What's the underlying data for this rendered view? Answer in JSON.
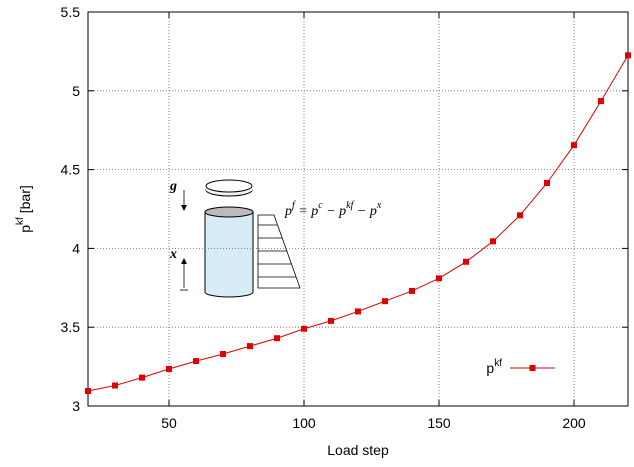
{
  "chart_data": {
    "type": "line",
    "xlabel": "Load step",
    "ylabel": [
      "p",
      "kf",
      " [bar]"
    ],
    "x": [
      20,
      30,
      40,
      50,
      60,
      70,
      80,
      90,
      100,
      110,
      120,
      130,
      140,
      150,
      160,
      170,
      180,
      190,
      200,
      210,
      220
    ],
    "series": [
      {
        "name": "p",
        "name_sup": "kf",
        "color": "#e00000",
        "values": [
          3.095,
          3.13,
          3.18,
          3.235,
          3.285,
          3.33,
          3.38,
          3.43,
          3.49,
          3.54,
          3.6,
          3.665,
          3.73,
          3.81,
          3.915,
          4.045,
          4.21,
          4.415,
          4.655,
          4.935,
          5.225
        ]
      }
    ],
    "xlim": [
      20,
      220
    ],
    "xticks": [
      50,
      100,
      150,
      200
    ],
    "ylim": [
      3,
      5.5
    ],
    "yticks": [
      3,
      3.5,
      4,
      4.5,
      5,
      5.5
    ],
    "grid": true,
    "legend": "lower right",
    "annotation": {
      "g": "g",
      "x": "x",
      "formula": [
        "p",
        "f",
        " = ",
        "p",
        "c",
        " − ",
        "p",
        "kf",
        " − ",
        "p",
        "x"
      ]
    }
  }
}
